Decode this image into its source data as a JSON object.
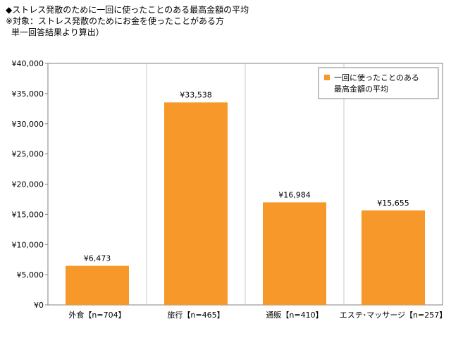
{
  "caption": {
    "line1": "◆ストレス発散のために一回に使ったことのある最高金額の平均",
    "line2": "※対象：ストレス発散のためにお金を使ったことがある方",
    "line3": "単一回答結果より算出）"
  },
  "colors": {
    "bar": "#F7982A",
    "gridline": "#c8c8c8",
    "axis": "#808080",
    "plot_border": "#808080"
  },
  "chart_data": {
    "type": "bar",
    "categories": [
      "外食【n=704】",
      "旅行【n=465】",
      "通販【n=410】",
      "エステ･マッサージ【n=257】"
    ],
    "series": [
      {
        "name": "一回に使ったことのある最高金額の平均",
        "values": [
          6473,
          33538,
          16984,
          15655
        ]
      }
    ],
    "data_labels": [
      "¥6,473",
      "¥33,538",
      "¥16,984",
      "¥15,655"
    ],
    "ylim": [
      0,
      40000
    ],
    "yticks": [
      0,
      5000,
      10000,
      15000,
      20000,
      25000,
      30000,
      35000,
      40000
    ],
    "ytick_labels": [
      "¥0",
      "¥5,000",
      "¥10,000",
      "¥15,000",
      "¥20,000",
      "¥25,000",
      "¥30,000",
      "¥35,000",
      "¥40,000"
    ],
    "legend": {
      "position": "top-right",
      "line1": "一回に使ったことのある",
      "line2": "最高金額の平均"
    },
    "title": "",
    "xlabel": "",
    "ylabel": "",
    "grid": false
  }
}
